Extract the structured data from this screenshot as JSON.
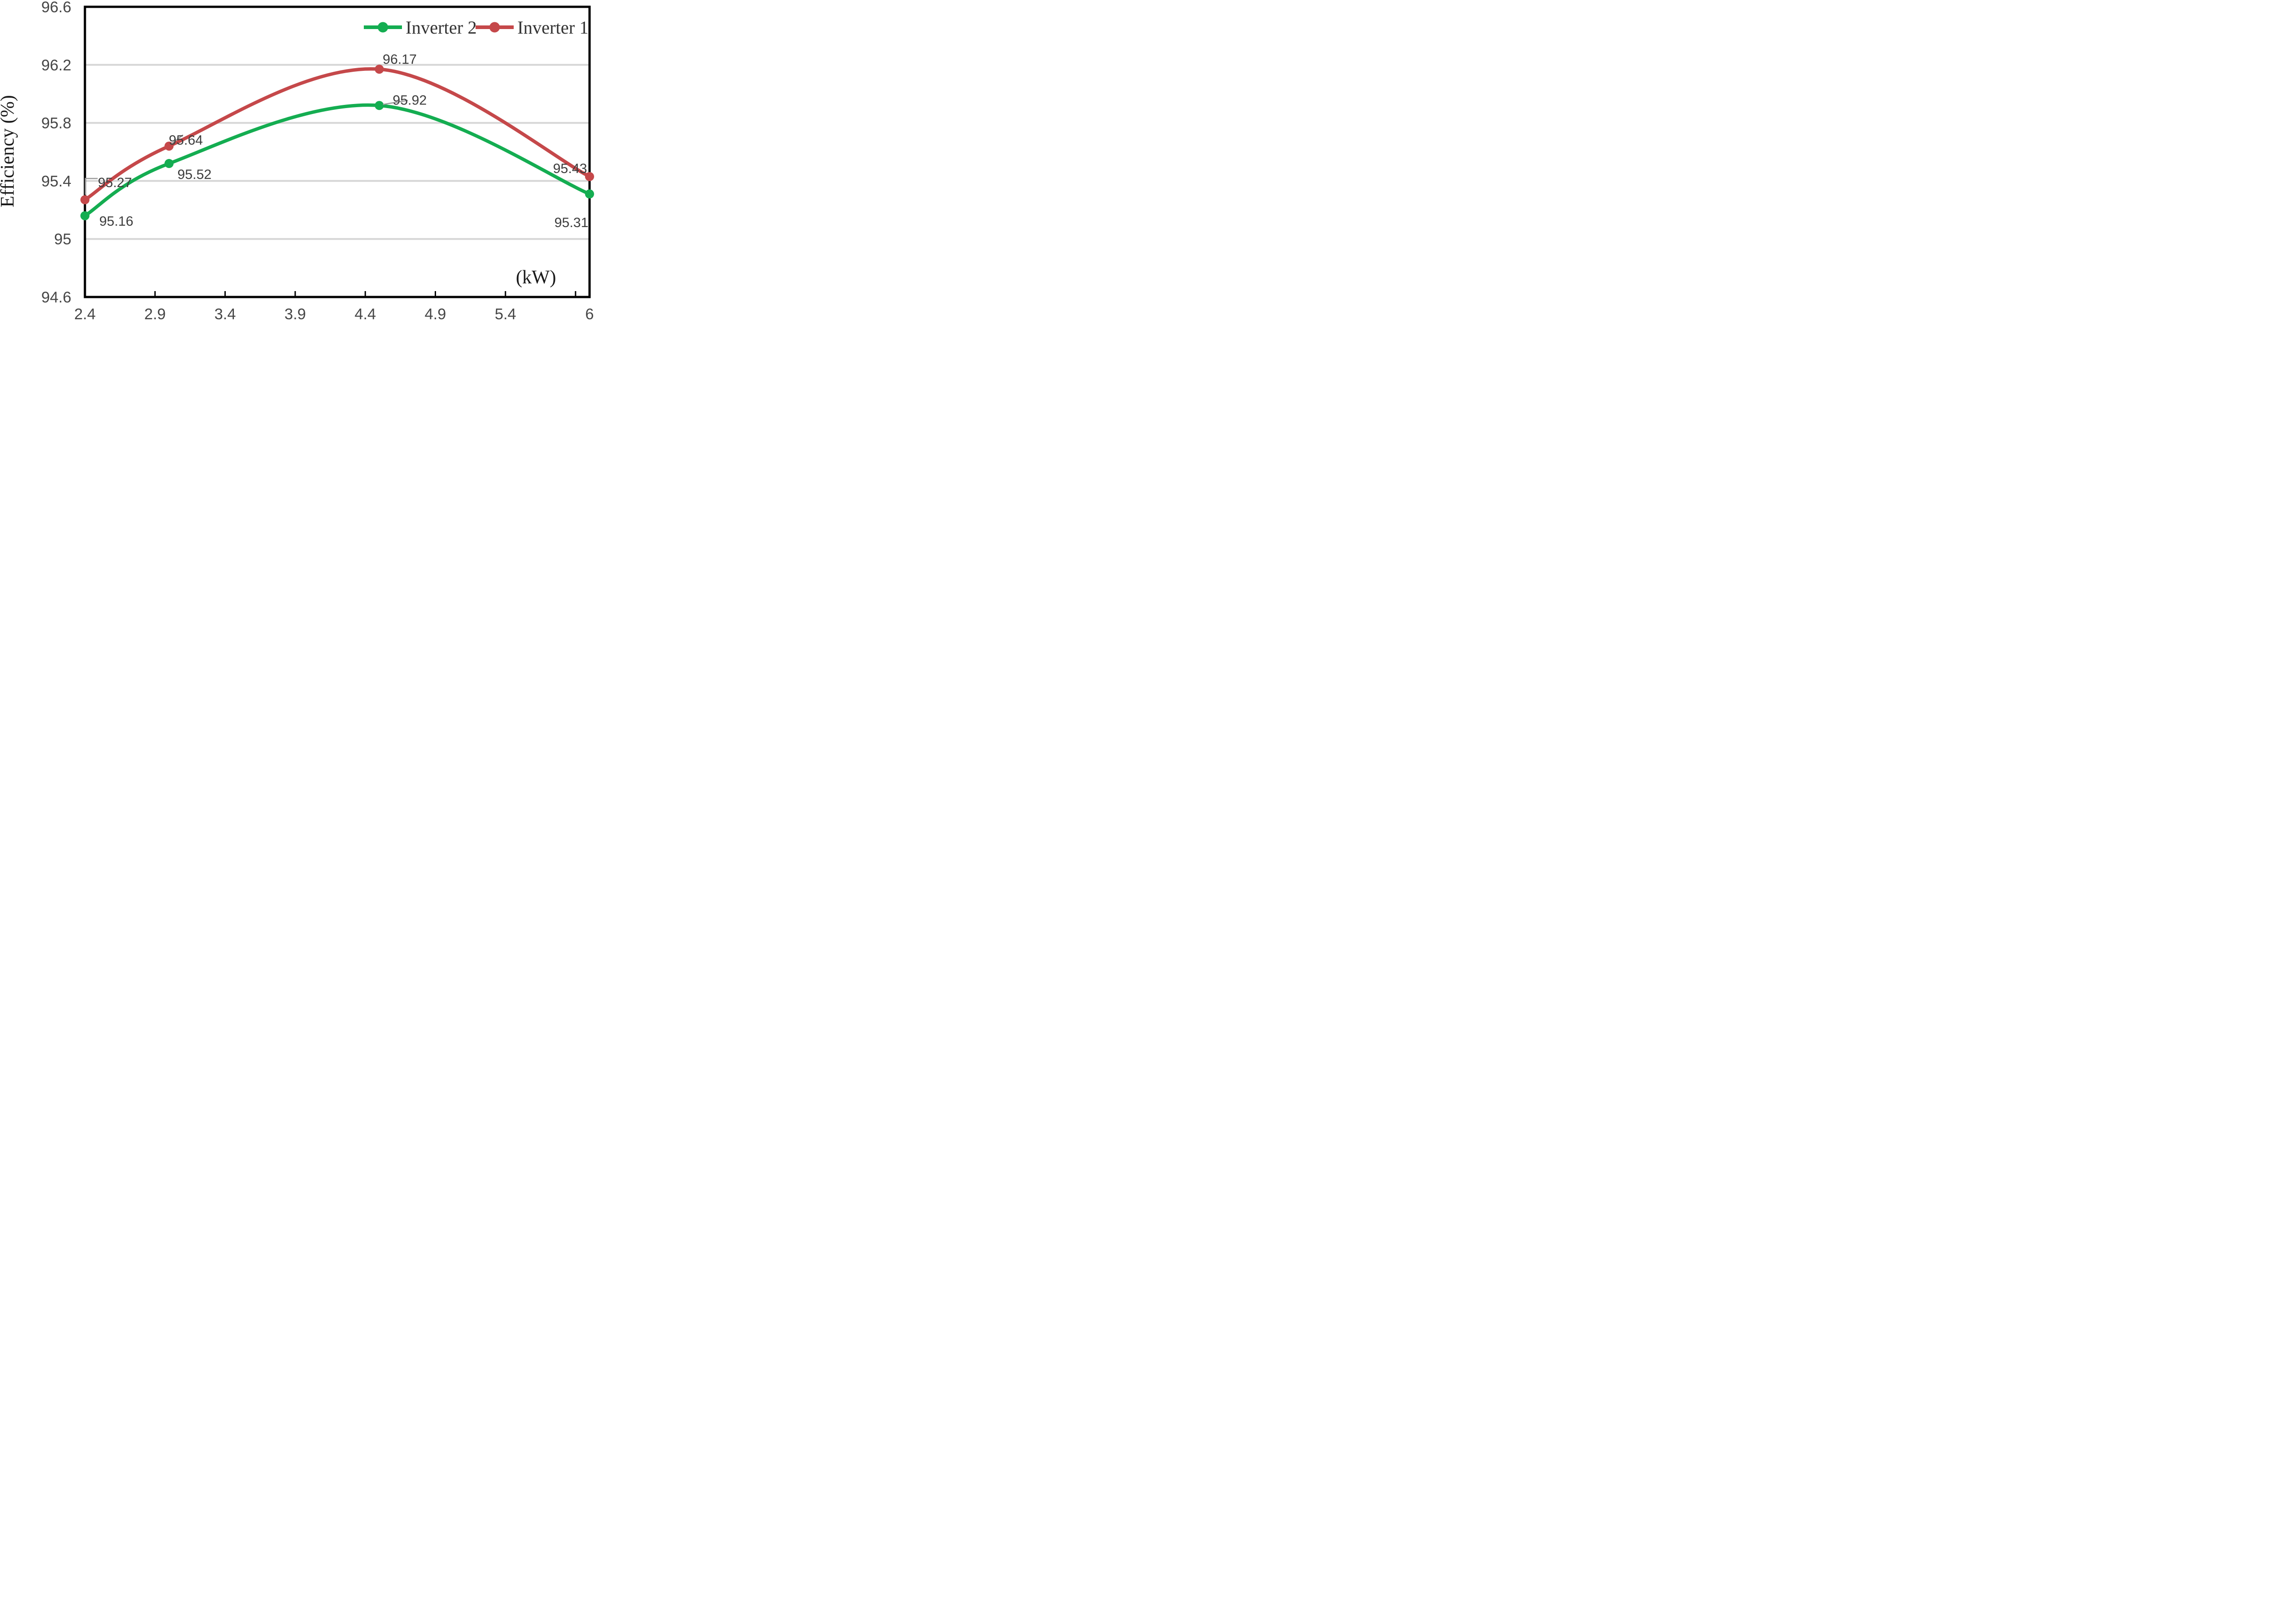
{
  "chart_data": {
    "type": "line",
    "title": "",
    "xlabel": "(kW)",
    "ylabel": "Efficiency (%)",
    "smooth": true,
    "grid": "horizontal",
    "legend_position": "top-right-inside",
    "x": [
      2.4,
      3.0,
      4.5,
      6.0
    ],
    "series": [
      {
        "name": "Inverter 1",
        "color": "#c5484a",
        "values": [
          95.27,
          95.64,
          96.17,
          95.43
        ],
        "point_labels": [
          "95.27",
          "95.64",
          "96.17",
          "95.43"
        ]
      },
      {
        "name": "Inverter 2",
        "color": "#14ad51",
        "values": [
          95.16,
          95.52,
          95.92,
          95.31
        ],
        "point_labels": [
          "95.16",
          "95.52",
          "95.92",
          "95.31"
        ]
      }
    ],
    "xlim": [
      2.4,
      6.0
    ],
    "ylim": [
      94.6,
      96.6
    ],
    "x_tick_labels": [
      {
        "label": "2.4",
        "value": 2.4
      },
      {
        "label": "2.9",
        "value": 2.9
      },
      {
        "label": "3.4",
        "value": 3.4
      },
      {
        "label": "3.9",
        "value": 3.9
      },
      {
        "label": "4.4",
        "value": 4.4
      },
      {
        "label": "4.9",
        "value": 4.9
      },
      {
        "label": "5.4",
        "value": 5.4
      },
      {
        "label": "6",
        "value": 6.0
      }
    ],
    "x_tick_marks": [
      2.9,
      3.4,
      3.9,
      4.4,
      4.9,
      5.4,
      5.9
    ],
    "y_tick_labels": [
      {
        "label": "96.6",
        "value": 96.6
      },
      {
        "label": "96.2",
        "value": 96.2
      },
      {
        "label": "95.8",
        "value": 95.8
      },
      {
        "label": "95.4",
        "value": 95.4
      },
      {
        "label": "95",
        "value": 95.0
      },
      {
        "label": "94.6",
        "value": 94.6
      }
    ],
    "gridline_values": [
      96.2,
      95.8,
      95.4,
      95.0
    ]
  },
  "legend": {
    "items": [
      {
        "label": "Inverter 2",
        "color": "#14ad51"
      },
      {
        "label": "Inverter 1",
        "color": "#c5484a"
      }
    ]
  },
  "colors": {
    "plot_border": "#000000",
    "gridline": "#d6d6d6",
    "leader_line": "#9a9a9a",
    "tick_text": "#474747",
    "data_label_text": "#3d3d3d"
  }
}
